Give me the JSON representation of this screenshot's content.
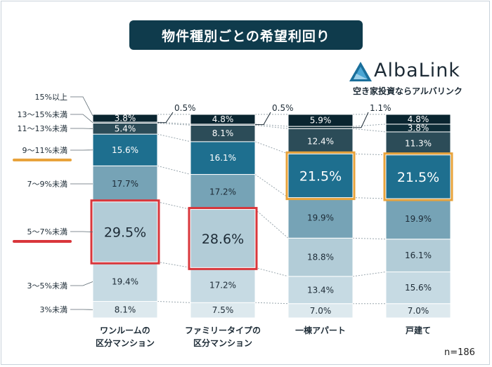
{
  "title": "物件種別ごとの希望利回り",
  "brand": {
    "name": "AlbaLink",
    "subtitle": "空き家投資ならアルバリンク"
  },
  "sample_note": "n=186",
  "chart_data": {
    "type": "bar",
    "stacked": true,
    "percent_stacked": true,
    "title": "物件種別ごとの希望利回り",
    "categories": [
      [
        "ワンルームの",
        "区分マンション"
      ],
      [
        "ファミリータイプの",
        "区分マンション"
      ],
      [
        "一棟アパート"
      ],
      [
        "戸建て"
      ]
    ],
    "series": [
      {
        "name": "3%未満",
        "color": "#dde9ee",
        "values": [
          8.1,
          7.5,
          7.0,
          7.0
        ]
      },
      {
        "name": "3～5%未満",
        "color": "#c6dae3",
        "values": [
          19.4,
          17.2,
          13.4,
          15.6
        ]
      },
      {
        "name": "5～7%未満",
        "color": "#b2ccd7",
        "values": [
          29.5,
          28.6,
          18.8,
          16.1
        ]
      },
      {
        "name": "7～9%未満",
        "color": "#76a3b6",
        "values": [
          17.7,
          17.2,
          19.9,
          19.9
        ]
      },
      {
        "name": "9～11%未満",
        "color": "#1e6f8f",
        "values": [
          15.6,
          16.1,
          21.5,
          21.5
        ]
      },
      {
        "name": "11～13%未満",
        "color": "#2c4c58",
        "values": [
          5.4,
          8.1,
          12.4,
          11.3
        ]
      },
      {
        "name": "13～15%未満",
        "color": "#0e2d38",
        "values": [
          0.5,
          0.5,
          1.1,
          3.8
        ]
      },
      {
        "name": "15%以上",
        "color": "#0a2530",
        "values": [
          3.8,
          4.8,
          5.9,
          4.8
        ]
      }
    ],
    "highlights": [
      {
        "category": 0,
        "series": 2,
        "color": "#d9363b"
      },
      {
        "category": 1,
        "series": 2,
        "color": "#d9363b"
      },
      {
        "category": 2,
        "series": 4,
        "color": "#e8a33b"
      },
      {
        "category": 3,
        "series": 4,
        "color": "#e8a33b"
      }
    ],
    "legend_markers": [
      {
        "series": 4,
        "color": "#e8a33b"
      },
      {
        "series": 2,
        "color": "#d9363b"
      }
    ],
    "outside_labels": [
      {
        "category": 0,
        "series": 6,
        "text": "0.5%"
      },
      {
        "category": 1,
        "series": 6,
        "text": "0.5%"
      },
      {
        "category": 2,
        "series": 6,
        "text": "1.1%"
      }
    ],
    "grid": false,
    "legend": "left"
  }
}
